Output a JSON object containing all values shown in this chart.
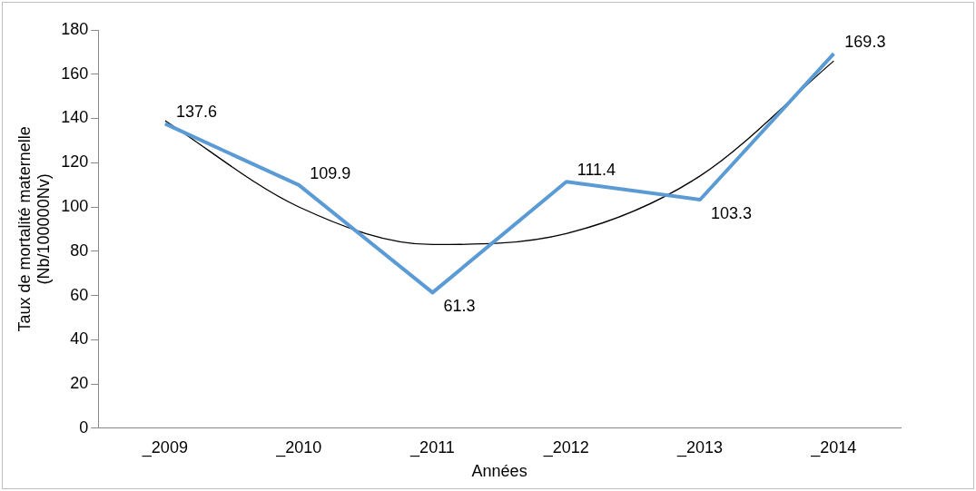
{
  "chart_data": {
    "type": "line",
    "xlabel": "Années",
    "ylabel": "Taux de mortalité maternelle\n(Nb/100000Nv)",
    "categories": [
      "_2009",
      "_2010",
      "_2011",
      "_2012",
      "_2013",
      "_2014"
    ],
    "series": [
      {
        "color": "#5b9bd5",
        "values": [
          137.6,
          109.9,
          61.3,
          111.4,
          103.3,
          169.3
        ],
        "value_labels": [
          "137.6",
          "109.9",
          "61.3",
          "111.4",
          "103.3",
          "169.3"
        ]
      },
      {
        "type": "line",
        "color": "#000000",
        "values": [
          139,
          100,
          83,
          88,
          114,
          166
        ]
      }
    ],
    "ylim": [
      0,
      180
    ],
    "yticks": [
      0,
      20,
      40,
      60,
      80,
      100,
      120,
      140,
      160,
      180
    ],
    "grid": false,
    "legend": false,
    "marker": "none",
    "line_style": "solid"
  }
}
